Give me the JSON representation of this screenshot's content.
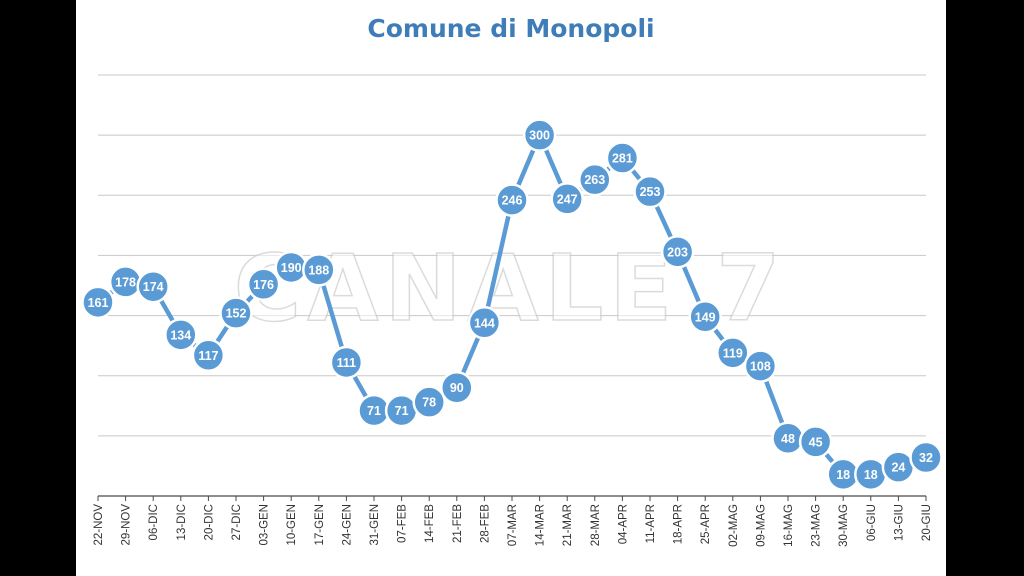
{
  "watermark": "CANALE 7",
  "chart_data": {
    "type": "line",
    "title": "Comune di Monopoli",
    "xlabel": "",
    "ylabel": "",
    "ylim": [
      0,
      350
    ],
    "grid": true,
    "gridlines": [
      50,
      100,
      150,
      200,
      250,
      300,
      350
    ],
    "categories": [
      "22-NOV",
      "29-NOV",
      "06-DIC",
      "13-DIC",
      "20-DIC",
      "27-DIC",
      "03-GEN",
      "10-GEN",
      "17-GEN",
      "24-GEN",
      "31-GEN",
      "07-FEB",
      "14-FEB",
      "21-FEB",
      "28-FEB",
      "07-MAR",
      "14-MAR",
      "21-MAR",
      "28-MAR",
      "04-APR",
      "11-APR",
      "18-APR",
      "25-APR",
      "02-MAG",
      "09-MAG",
      "16-MAG",
      "23-MAG",
      "30-MAG",
      "06-GIU",
      "13-GIU",
      "20-GIU"
    ],
    "values": [
      161,
      178,
      174,
      134,
      117,
      152,
      176,
      190,
      188,
      111,
      71,
      71,
      78,
      90,
      144,
      246,
      300,
      247,
      263,
      281,
      253,
      203,
      149,
      119,
      108,
      48,
      45,
      18,
      18,
      24,
      32
    ],
    "colors": {
      "series": "#5b9bd5",
      "title": "#3f7db8"
    }
  }
}
